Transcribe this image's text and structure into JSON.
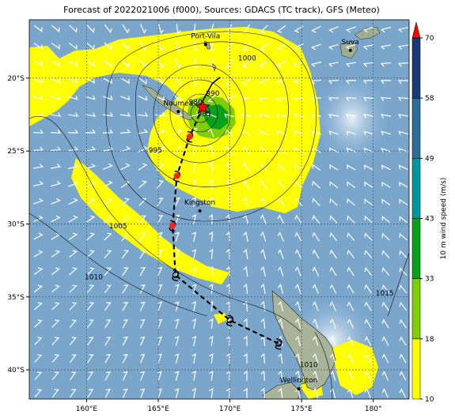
{
  "title": "Forecast of 2022021006 (f000), Sources: GDACS (TC track), GFS (Meteo)",
  "map": {
    "lon_range": [
      156,
      182.5
    ],
    "lat_range": [
      -42,
      -16
    ],
    "lon_ticks": [
      "160°E",
      "165°E",
      "170°E",
      "175°E",
      "180°"
    ],
    "lat_ticks": [
      "20°S",
      "25°S",
      "30°S",
      "35°S",
      "40°S"
    ],
    "grid": true,
    "ocean_color": "#7aa6cc",
    "land_color": "#b7c2a8",
    "high_wind_color": "#ffff00"
  },
  "cities": [
    {
      "name": "Port-Vila",
      "lon": 168.3,
      "lat": -17.7
    },
    {
      "name": "Suva",
      "lon": 178.4,
      "lat": -18.1
    },
    {
      "name": "Noumea",
      "lon": 166.4,
      "lat": -22.3
    },
    {
      "name": "Kingston",
      "lon": 167.9,
      "lat": -29.1
    },
    {
      "name": "Wellington",
      "lon": 174.8,
      "lat": -41.3
    }
  ],
  "isobars": [
    {
      "label": "1000",
      "lon": 171.2,
      "lat": -18.8
    },
    {
      "label": "990",
      "lon": 168.8,
      "lat": -21.2
    },
    {
      "label": "985",
      "lon": 168.2,
      "lat": -22.6
    },
    {
      "label": "980",
      "lon": 167.6,
      "lat": -21.8
    },
    {
      "label": "995",
      "lon": 164.8,
      "lat": -25.1
    },
    {
      "label": "1005",
      "lon": 162.2,
      "lat": -30.3
    },
    {
      "label": "1010",
      "lon": 160.5,
      "lat": -33.8
    },
    {
      "label": "1010",
      "lon": 175.5,
      "lat": -39.8
    },
    {
      "label": "1015",
      "lon": 180.8,
      "lat": -34.9
    }
  ],
  "track": {
    "center": {
      "lon": 168.1,
      "lat": -22.0
    },
    "points": [
      {
        "lon": 168.1,
        "lat": -22.0
      },
      {
        "lon": 167.2,
        "lat": -24.0
      },
      {
        "lon": 166.3,
        "lat": -26.7
      },
      {
        "lon": 166.0,
        "lat": -30.1
      },
      {
        "lon": 166.2,
        "lat": -33.5
      },
      {
        "lon": 170.0,
        "lat": -36.6
      },
      {
        "lon": 173.4,
        "lat": -38.2
      }
    ]
  },
  "colorbar": {
    "label": "10 m wind speed (m/s)",
    "ticks": [
      "10",
      "18",
      "33",
      "43",
      "49",
      "58",
      "70"
    ],
    "colors": [
      "#ffff00",
      "#7fce00",
      "#06a31a",
      "#00989c",
      "#2b6e99",
      "#1a3a78"
    ],
    "extend_color": "#ff0000"
  }
}
